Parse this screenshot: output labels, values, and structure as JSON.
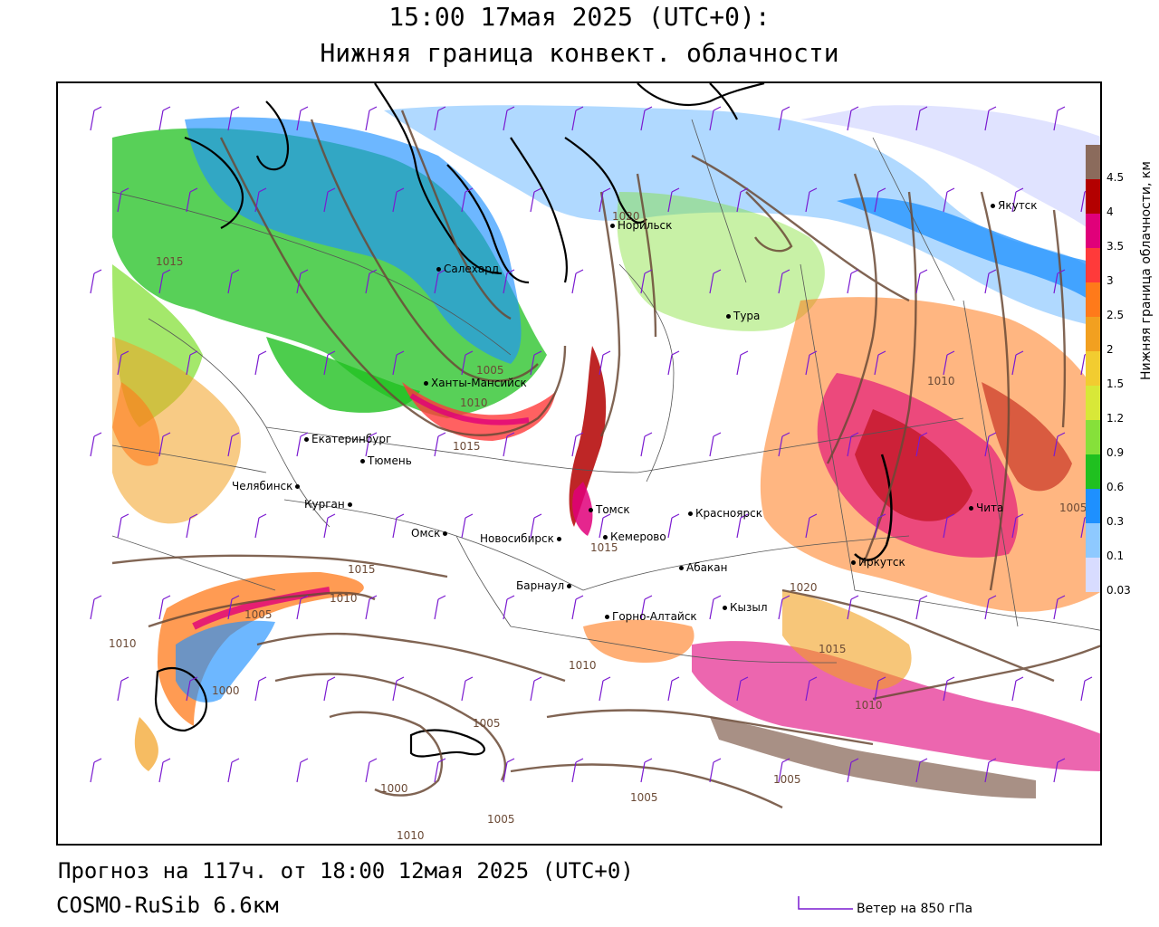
{
  "title": {
    "line1": "15:00 17мая 2025 (UTC+0):",
    "line2": "Нижняя граница конвект. облачности"
  },
  "footer": {
    "forecast": "Прогноз на 117ч. от 18:00 12мая 2025 (UTC+0)",
    "model": "COSMO-RuSib 6.6км",
    "wind_legend": "Ветер на 850 гПа"
  },
  "legend": {
    "title": "Нижняя граница облачности, км",
    "ticks": [
      "4.5",
      "4",
      "3.5",
      "3",
      "2.5",
      "2",
      "1.5",
      "1.2",
      "0.9",
      "0.6",
      "0.3",
      "0.1",
      "0.03"
    ],
    "colors": [
      "#8b6b5c",
      "#b30000",
      "#e0007a",
      "#ff3a3a",
      "#ff7a1a",
      "#f2a020",
      "#f2cc30",
      "#d8e838",
      "#86e03a",
      "#20c020",
      "#1e90ff",
      "#8ec9ff",
      "#d8dcff"
    ]
  },
  "colors": {
    "isobar": "#6b4a36",
    "wind_barb": "#7a1ad0",
    "boundary": "#555555",
    "coastline": "#000000"
  },
  "cities": [
    {
      "name": "Якутск"
    },
    {
      "name": "Норильск"
    },
    {
      "name": "Салехард"
    },
    {
      "name": "Тура"
    },
    {
      "name": "Ханты-Мансийск"
    },
    {
      "name": "Екатеринбург"
    },
    {
      "name": "Тюмень"
    },
    {
      "name": "Челябинск"
    },
    {
      "name": "Курган"
    },
    {
      "name": "Омск"
    },
    {
      "name": "Новосибирск"
    },
    {
      "name": "Томск"
    },
    {
      "name": "Кемерово"
    },
    {
      "name": "Красноярск"
    },
    {
      "name": "Абакан"
    },
    {
      "name": "Барнаул"
    },
    {
      "name": "Горно-Алтайск"
    },
    {
      "name": "Кызыл"
    },
    {
      "name": "Иркутск"
    },
    {
      "name": "Чита"
    }
  ],
  "isobar_labels": [
    "1015",
    "1020",
    "1005",
    "1010",
    "1015",
    "1010",
    "1010",
    "1005",
    "1000",
    "1015",
    "1010",
    "1005",
    "1000",
    "1005",
    "1005",
    "1010",
    "1010",
    "1020",
    "1015",
    "1010",
    "1005",
    "1015",
    "1005"
  ]
}
